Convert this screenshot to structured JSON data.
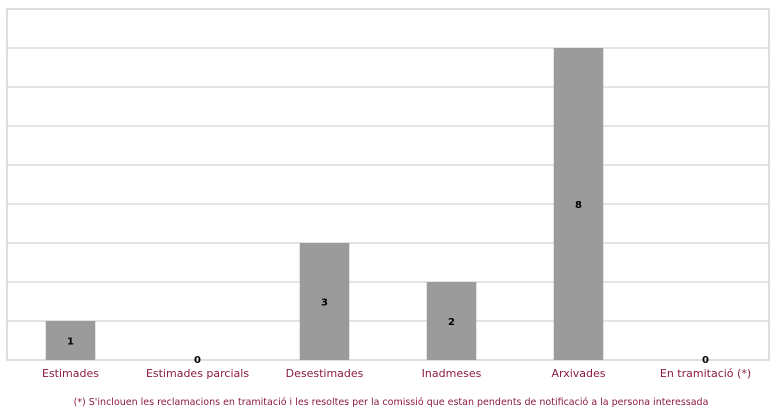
{
  "chart_data": {
    "type": "bar",
    "title": "",
    "xlabel": "",
    "ylabel": "",
    "categories": [
      "Estimades",
      "Estimades parcials",
      "Desestimades",
      "Inadmeses",
      "Arxivades",
      "En tramitació (*)"
    ],
    "values": [
      1,
      0,
      3,
      2,
      8,
      0
    ],
    "ylim": [
      0,
      9
    ],
    "ytick_step": 1,
    "grid": true,
    "legend": "none",
    "bar_color": "#9b9b9b",
    "label_color": "#8c1c45",
    "footnote": "(*) S'inclouen les reclamacions en tramitació i les resoltes per la comissió que estan pendents de notificació a la persona interessada"
  }
}
